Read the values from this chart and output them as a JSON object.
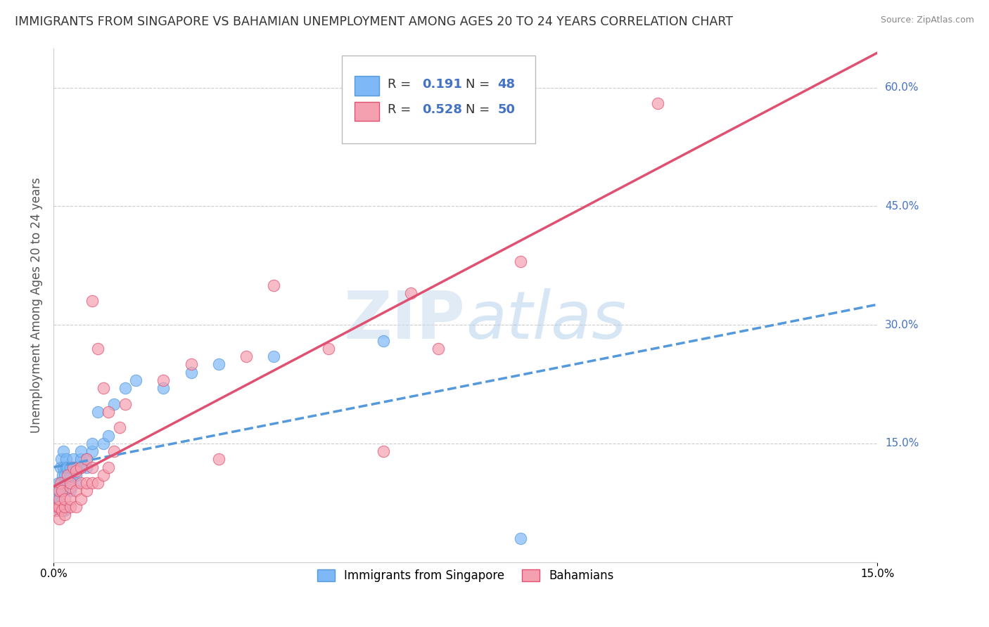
{
  "title": "IMMIGRANTS FROM SINGAPORE VS BAHAMIAN UNEMPLOYMENT AMONG AGES 20 TO 24 YEARS CORRELATION CHART",
  "source": "Source: ZipAtlas.com",
  "ylabel": "Unemployment Among Ages 20 to 24 years",
  "xlim": [
    0,
    0.15
  ],
  "ylim": [
    0,
    0.65
  ],
  "ytick_values": [
    0,
    0.15,
    0.3,
    0.45,
    0.6
  ],
  "ytick_labels": [
    "",
    "15.0%",
    "30.0%",
    "45.0%",
    "60.0%"
  ],
  "xtick_values": [
    0,
    0.15
  ],
  "xtick_labels": [
    "0.0%",
    "15.0%"
  ],
  "watermark": "ZIPatlas",
  "series": [
    {
      "name": "Immigrants from Singapore",
      "R": 0.191,
      "N": 48,
      "color": "#7eb8f7",
      "line_color": "#5599dd",
      "line_style": "--",
      "x": [
        0.0005,
        0.0007,
        0.0008,
        0.001,
        0.001,
        0.001,
        0.0012,
        0.0013,
        0.0015,
        0.0015,
        0.0016,
        0.0017,
        0.0018,
        0.002,
        0.002,
        0.002,
        0.002,
        0.0022,
        0.0023,
        0.0025,
        0.0025,
        0.003,
        0.003,
        0.003,
        0.003,
        0.0035,
        0.004,
        0.004,
        0.004,
        0.005,
        0.005,
        0.005,
        0.006,
        0.006,
        0.007,
        0.007,
        0.008,
        0.009,
        0.01,
        0.011,
        0.013,
        0.015,
        0.02,
        0.025,
        0.03,
        0.04,
        0.06,
        0.085
      ],
      "y": [
        0.08,
        0.09,
        0.1,
        0.065,
        0.07,
        0.075,
        0.12,
        0.13,
        0.09,
        0.1,
        0.11,
        0.12,
        0.14,
        0.065,
        0.07,
        0.1,
        0.11,
        0.12,
        0.13,
        0.1,
        0.12,
        0.09,
        0.1,
        0.11,
        0.12,
        0.13,
        0.1,
        0.11,
        0.12,
        0.12,
        0.13,
        0.14,
        0.12,
        0.13,
        0.14,
        0.15,
        0.19,
        0.15,
        0.16,
        0.2,
        0.22,
        0.23,
        0.22,
        0.24,
        0.25,
        0.26,
        0.28,
        0.03
      ]
    },
    {
      "name": "Bahamians",
      "R": 0.528,
      "N": 50,
      "color": "#f5a0b0",
      "line_color": "#e05070",
      "line_style": "-",
      "x": [
        0.0005,
        0.0007,
        0.001,
        0.001,
        0.001,
        0.001,
        0.0012,
        0.0015,
        0.0015,
        0.002,
        0.002,
        0.002,
        0.0025,
        0.003,
        0.003,
        0.003,
        0.003,
        0.0035,
        0.004,
        0.004,
        0.004,
        0.005,
        0.005,
        0.005,
        0.006,
        0.006,
        0.006,
        0.007,
        0.007,
        0.007,
        0.008,
        0.008,
        0.009,
        0.009,
        0.01,
        0.01,
        0.011,
        0.012,
        0.013,
        0.02,
        0.025,
        0.03,
        0.035,
        0.04,
        0.05,
        0.06,
        0.065,
        0.07,
        0.085,
        0.11
      ],
      "y": [
        0.065,
        0.07,
        0.055,
        0.07,
        0.08,
        0.09,
        0.1,
        0.065,
        0.09,
        0.06,
        0.07,
        0.08,
        0.11,
        0.07,
        0.08,
        0.095,
        0.1,
        0.12,
        0.07,
        0.09,
        0.115,
        0.08,
        0.1,
        0.12,
        0.09,
        0.1,
        0.13,
        0.1,
        0.12,
        0.33,
        0.1,
        0.27,
        0.11,
        0.22,
        0.12,
        0.19,
        0.14,
        0.17,
        0.2,
        0.23,
        0.25,
        0.13,
        0.26,
        0.35,
        0.27,
        0.14,
        0.34,
        0.27,
        0.38,
        0.58
      ]
    }
  ],
  "background_color": "#ffffff",
  "grid_color": "#cccccc",
  "title_fontsize": 12.5,
  "axis_label_fontsize": 12,
  "tick_fontsize": 11,
  "legend_fontsize": 13
}
